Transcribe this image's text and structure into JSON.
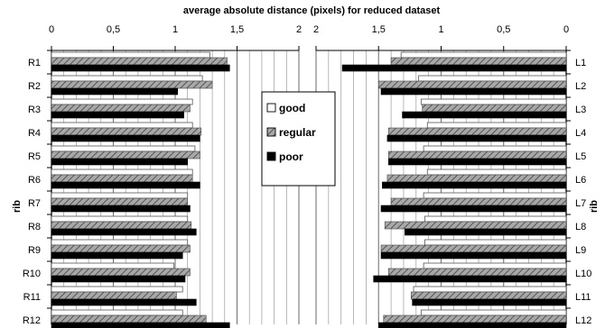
{
  "chart_data": {
    "type": "bar",
    "orientation": "horizontal",
    "title": "average absolute distance (pixels) for reduced dataset",
    "ylabel": "rib",
    "grid": true,
    "legend_position": "center",
    "colors": {
      "good": "#ffffff",
      "regular": "#a8a8a8",
      "poor": "#000000",
      "grid": "#9a9a9a",
      "axis": "#000000"
    },
    "panels": [
      {
        "name": "right",
        "xlim": [
          0,
          2
        ],
        "ticks": [
          {
            "value": 0,
            "label": "0"
          },
          {
            "value": 0.5,
            "label": "0,5"
          },
          {
            "value": 1,
            "label": "1"
          },
          {
            "value": 1.5,
            "label": "1,5"
          },
          {
            "value": 2,
            "label": "2"
          }
        ],
        "categories": [
          "R1",
          "R2",
          "R3",
          "R4",
          "R5",
          "R6",
          "R7",
          "R8",
          "R9",
          "R10",
          "R11",
          "R12"
        ],
        "series": [
          {
            "name": "good",
            "values": [
              1.28,
              1.22,
              1.14,
              1.14,
              1.16,
              1.14,
              1.1,
              1.1,
              1.1,
              0.99,
              1.06,
              1.06
            ]
          },
          {
            "name": "regular",
            "values": [
              1.42,
              1.3,
              1.12,
              1.21,
              1.2,
              1.14,
              1.1,
              1.13,
              1.12,
              1.12,
              1.01,
              1.25
            ]
          },
          {
            "name": "poor",
            "values": [
              1.44,
              1.02,
              1.07,
              1.2,
              1.1,
              1.2,
              1.12,
              1.17,
              1.06,
              1.08,
              1.17,
              1.44
            ]
          }
        ]
      },
      {
        "name": "left",
        "xlim": [
          2,
          0
        ],
        "ticks": [
          {
            "value": 2,
            "label": "2"
          },
          {
            "value": 1.5,
            "label": "1,5"
          },
          {
            "value": 1,
            "label": "1"
          },
          {
            "value": 0.5,
            "label": "0,5"
          },
          {
            "value": 0,
            "label": "0"
          }
        ],
        "categories": [
          "L1",
          "L2",
          "L3",
          "L4",
          "L5",
          "L6",
          "L7",
          "L8",
          "L9",
          "L10",
          "L11",
          "L12"
        ],
        "series": [
          {
            "name": "good",
            "values": [
              1.32,
              1.18,
              1.16,
              1.11,
              1.14,
              1.11,
              1.14,
              1.13,
              1.13,
              1.14,
              1.22,
              1.16
            ]
          },
          {
            "name": "regular",
            "values": [
              1.4,
              1.5,
              1.15,
              1.42,
              1.42,
              1.43,
              1.4,
              1.45,
              1.48,
              1.42,
              1.24,
              1.46
            ]
          },
          {
            "name": "poor",
            "values": [
              1.79,
              1.48,
              1.31,
              1.43,
              1.42,
              1.47,
              1.48,
              1.29,
              1.48,
              1.54,
              1.23,
              1.5
            ]
          }
        ]
      }
    ],
    "legend": [
      {
        "key": "good",
        "label": "good"
      },
      {
        "key": "regular",
        "label": "regular"
      },
      {
        "key": "poor",
        "label": "poor"
      }
    ]
  }
}
